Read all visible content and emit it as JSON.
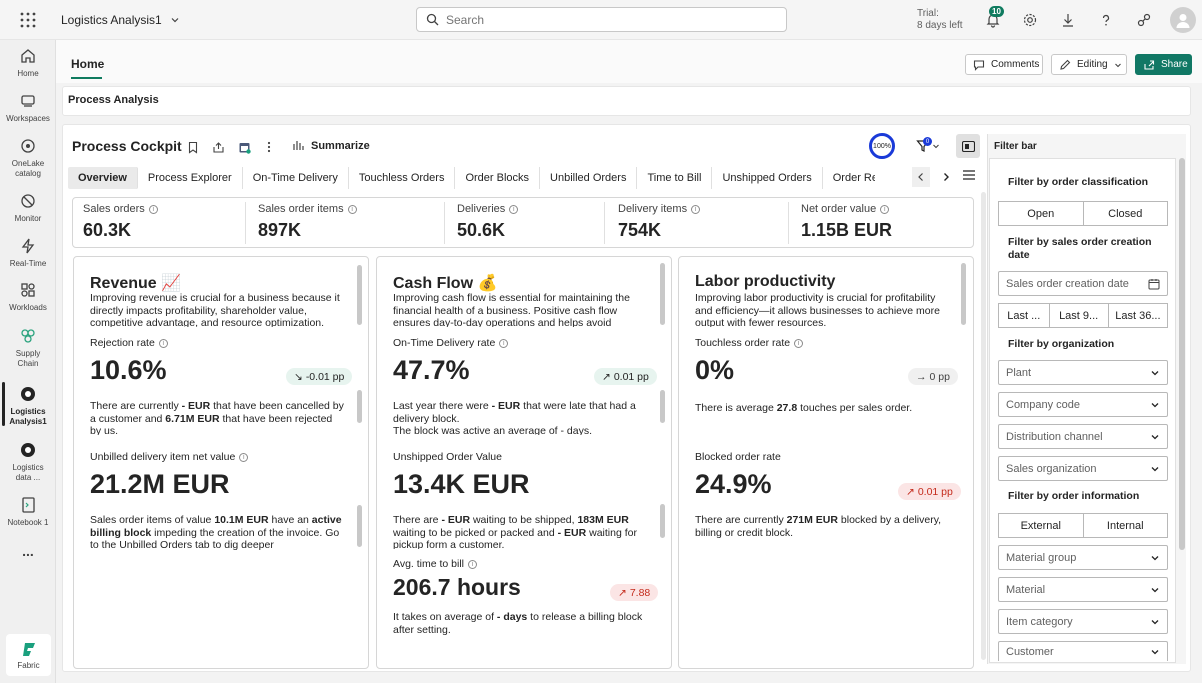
{
  "topbar": {
    "app_title": "Logistics Analysis1",
    "search_placeholder": "Search",
    "trial_line1": "Trial:",
    "trial_line2": "8 days left",
    "notification_count": "10"
  },
  "rail": {
    "items": [
      {
        "label": "Home",
        "icon": "home-icon"
      },
      {
        "label": "Workspaces",
        "icon": "workspaces-icon"
      },
      {
        "label": "OneLake catalog",
        "icon": "onelake-icon"
      },
      {
        "label": "Monitor",
        "icon": "monitor-icon"
      },
      {
        "label": "Real-Time",
        "icon": "real-time-icon"
      },
      {
        "label": "Workloads",
        "icon": "workloads-icon"
      },
      {
        "label": "Supply Chain",
        "icon": "supply-chain-icon"
      },
      {
        "label": "Logistics Analysis1",
        "icon": "logistics-analysis-icon"
      },
      {
        "label": "Logistics data ...",
        "icon": "logistics-data-icon"
      },
      {
        "label": "Notebook 1",
        "icon": "notebook-icon"
      }
    ],
    "more": "...",
    "fabric_label": "Fabric"
  },
  "home": {
    "tab_label": "Home",
    "comments_label": "Comments",
    "editing_label": "Editing",
    "share_label": "Share"
  },
  "section_title": "Process Analysis",
  "cockpit": {
    "title": "Process Cockpit",
    "summarize_label": "Summarize",
    "zoom": "100%",
    "filter_count": "0"
  },
  "tabs": [
    "Overview",
    "Process Explorer",
    "On-Time Delivery",
    "Touchless Orders",
    "Order Blocks",
    "Unbilled Orders",
    "Time to Bill",
    "Unshipped Orders",
    "Order Re"
  ],
  "kpis": [
    {
      "label": "Sales orders",
      "value": "60.3K"
    },
    {
      "label": "Sales order items",
      "value": "897K"
    },
    {
      "label": "Deliveries",
      "value": "50.6K"
    },
    {
      "label": "Delivery items",
      "value": "754K"
    },
    {
      "label": "Net order value",
      "value": "1.15B EUR"
    }
  ],
  "cards": {
    "revenue": {
      "title": "Revenue 📈",
      "desc": "Improving revenue is crucial for a business because it directly impacts profitability, shareholder value, competitive advantage, and resource optimization.",
      "m1_label": "Rejection rate",
      "m1_value": "10.6%",
      "m1_delta": "-0.01 pp",
      "m1_text_a": "There are currently ",
      "m1_text_b": "- EUR",
      "m1_text_c": " that have been cancelled by a customer and ",
      "m1_text_d": "6.71M EUR",
      "m1_text_e": "  that have been rejected by us.",
      "m2_label": "Unbilled delivery item net value",
      "m2_value": "21.2M EUR",
      "m2_text_a": "Sales order items of value ",
      "m2_text_b": "10.1M EUR",
      "m2_text_c": " have an ",
      "m2_text_d": "active billing block",
      "m2_text_e": " impeding the creation of the invoice. Go to the Unbilled Orders tab to dig deeper"
    },
    "cashflow": {
      "title": "Cash Flow 💰",
      "desc": "Improving cash flow is essential for maintaining the financial health of a business. Positive cash flow ensures day-to-day operations and helps avoid",
      "m1_label": "On-Time Delivery rate",
      "m1_value": "47.7%",
      "m1_delta": "0.01 pp",
      "m1_text_a": "Last year there were ",
      "m1_text_b": "- EUR",
      "m1_text_c": " that were late that had a delivery block.",
      "m1_text_d": "The block was active an average of - days.",
      "m2_label": "Unshipped Order Value",
      "m2_value": "13.4K EUR",
      "m2_text_a": "There are ",
      "m2_text_b": "- EUR",
      "m2_text_c": " waiting to be shipped, ",
      "m2_text_d": "183M EUR",
      "m2_text_e": " waiting to be picked or packed and ",
      "m2_text_f": "- EUR",
      "m2_text_g": " waiting for pickup form a customer.",
      "m3_label": "Avg. time to bill",
      "m3_value": "206.7 hours",
      "m3_delta": "7.88",
      "m3_text_a": "It takes on average of ",
      "m3_text_b": "- days",
      "m3_text_c": " to release a billing block after setting."
    },
    "labor": {
      "title": "Labor productivity",
      "desc": "Improving labor productivity is crucial for profitability and efficiency—it allows businesses to achieve more output with fewer resources.",
      "m1_label": "Touchless order rate",
      "m1_value": "0%",
      "m1_delta": "0 pp",
      "m1_text_a": "There is average ",
      "m1_text_b": "27.8",
      "m1_text_c": " touches per sales order.",
      "m2_label": "Blocked order rate",
      "m2_value": "24.9%",
      "m2_delta": "0.01 pp",
      "m2_text_a": "There are currently ",
      "m2_text_b": "271M EUR",
      "m2_text_c": " blocked by a delivery, billing or credit block."
    }
  },
  "filterbar": {
    "title": "Filter bar",
    "s1": "Filter by order classification",
    "s1_options": [
      "Open",
      "Closed"
    ],
    "s2": "Filter by sales order creation date",
    "date_placeholder": "Sales order creation date",
    "date_options": [
      "Last ...",
      "Last 9...",
      "Last 36..."
    ],
    "s3": "Filter by organization",
    "org_dropdowns": [
      "Plant",
      "Company code",
      "Distribution channel",
      "Sales organization"
    ],
    "s4": "Filter by order information",
    "s4_options": [
      "External",
      "Internal"
    ],
    "info_dropdowns": [
      "Material group",
      "Material",
      "Item category",
      "Customer"
    ]
  }
}
